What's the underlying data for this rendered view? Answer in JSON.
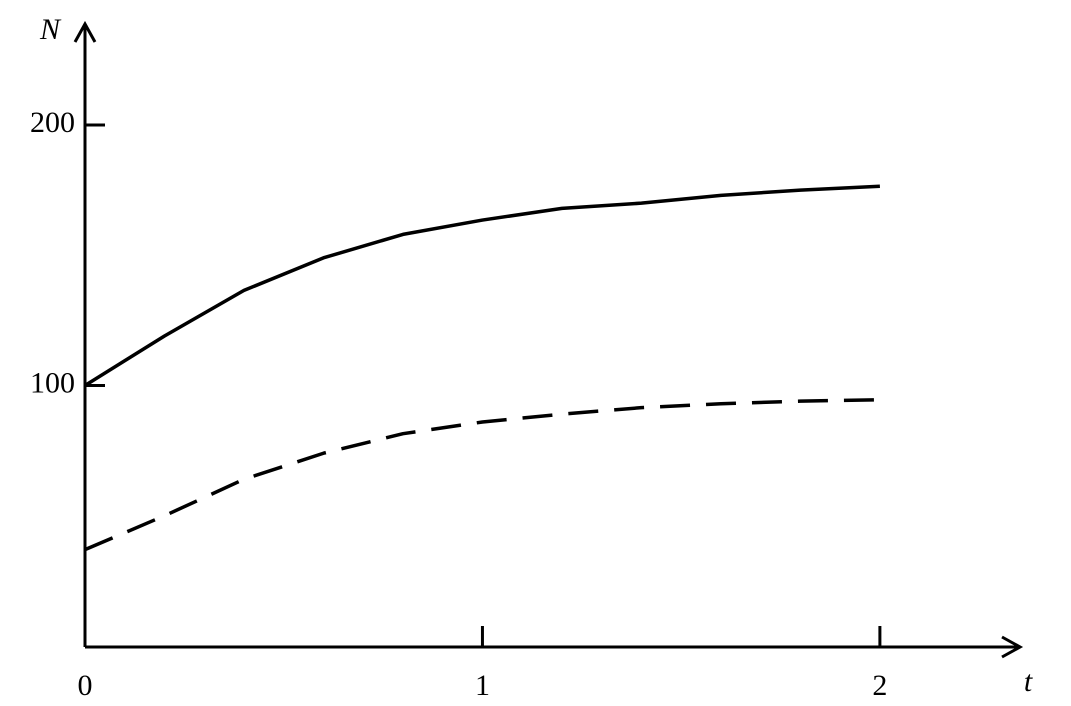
{
  "chart_data": {
    "type": "line",
    "x_label": "t",
    "y_label": "N",
    "xlim": [
      0,
      2.35
    ],
    "ylim": [
      0,
      238
    ],
    "xticks": [
      0,
      1,
      2
    ],
    "yticks": [
      100,
      200
    ],
    "grid": false,
    "series": [
      {
        "color": "#000000",
        "dashed": false,
        "x": [
          0,
          0.2,
          0.4,
          0.6,
          0.8,
          1.0,
          1.2,
          1.4,
          1.6,
          1.8,
          2.0
        ],
        "values": [
          100,
          119,
          136.5,
          149,
          158,
          163.5,
          168,
          170,
          173,
          175,
          176.5
        ]
      },
      {
        "color": "#000000",
        "dashed": true,
        "x": [
          0,
          0.2,
          0.4,
          0.6,
          0.8,
          1.0,
          1.2,
          1.4,
          1.6,
          1.8,
          2.0
        ],
        "values": [
          37,
          50,
          64,
          74,
          81.5,
          86,
          89,
          91.5,
          93,
          94,
          94.5
        ]
      }
    ]
  }
}
